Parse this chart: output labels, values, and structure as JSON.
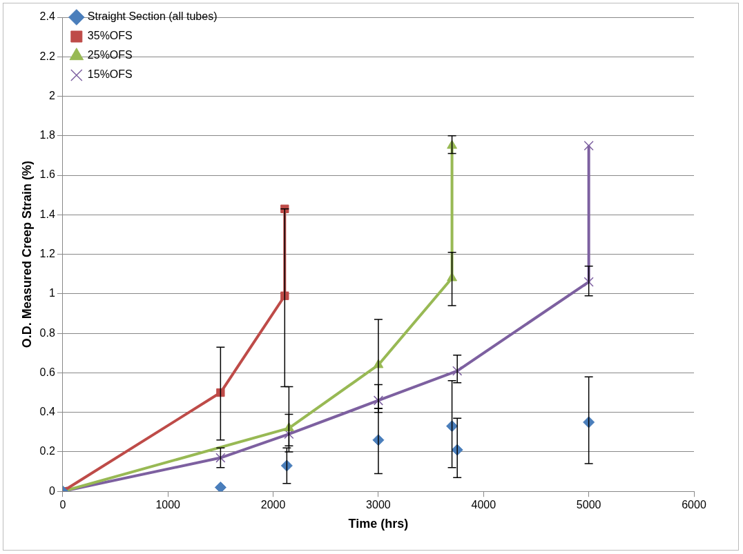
{
  "chart_data": {
    "type": "line",
    "xlabel": "Time (hrs)",
    "ylabel": "O.D. Measured Creep Strain (%)",
    "xlim": [
      0,
      6000
    ],
    "xticks": [
      0,
      1000,
      2000,
      3000,
      4000,
      5000,
      6000
    ],
    "ylim": [
      0,
      2.4
    ],
    "yticks": [
      0,
      0.2,
      0.4,
      0.6,
      0.8,
      1,
      1.2,
      1.4,
      1.6,
      1.8,
      2,
      2.2,
      2.4
    ],
    "grid": "y",
    "legend": "top left",
    "series": [
      {
        "name": "Straight Section (all tubes)",
        "type": "scatter",
        "marker": "diamond",
        "color": "#4a7ebb",
        "x": [
          0,
          1500,
          2130,
          3000,
          3700,
          3750,
          5000
        ],
        "values": [
          0,
          0.02,
          0.13,
          0.26,
          0.33,
          0.21,
          0.35
        ],
        "errors": [
          null,
          null,
          [
            0.04,
            0.22
          ],
          [
            0.09,
            0.42
          ],
          [
            0.12,
            0.56
          ],
          [
            0.07,
            0.37
          ],
          [
            0.14,
            0.58
          ]
        ]
      },
      {
        "name": "35%OFS",
        "type": "line",
        "marker": "square",
        "color": "#be4b48",
        "x": [
          0,
          1500,
          2110,
          2110
        ],
        "values": [
          0,
          0.5,
          0.99,
          1.43
        ],
        "errors": [
          null,
          [
            0.26,
            0.73
          ],
          [
            0.53,
            1.43
          ],
          null
        ]
      },
      {
        "name": "25%OFS",
        "type": "line",
        "marker": "triangle",
        "color": "#98b954",
        "x": [
          0,
          2150,
          3000,
          3700,
          3700
        ],
        "values": [
          0,
          0.32,
          0.64,
          1.08,
          1.75
        ],
        "errors": [
          null,
          [
            0.23,
            0.53
          ],
          [
            0.42,
            0.87
          ],
          [
            0.94,
            1.21
          ],
          [
            1.71,
            1.8
          ]
        ]
      },
      {
        "name": "15%OFS",
        "type": "line",
        "marker": "cross",
        "color": "#7d60a0",
        "x": [
          0,
          1500,
          2150,
          3000,
          3750,
          5000,
          5000
        ],
        "values": [
          0,
          0.17,
          0.29,
          0.46,
          0.61,
          1.06,
          1.75
        ],
        "errors": [
          null,
          [
            0.12,
            0.22
          ],
          [
            0.2,
            0.39
          ],
          [
            0.4,
            0.54
          ],
          [
            0.55,
            0.69
          ],
          [
            0.99,
            1.14
          ],
          null
        ]
      }
    ]
  }
}
